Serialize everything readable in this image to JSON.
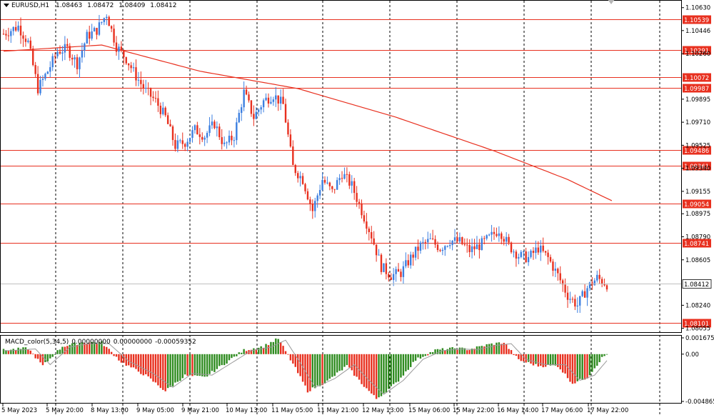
{
  "header": {
    "symbol": "EURUSD,H1",
    "open": "1.08463",
    "high": "1.08472",
    "low": "1.08409",
    "close": "1.08412"
  },
  "macd": {
    "name": "MACD_color(5,34,5)",
    "v1": "0.00000000",
    "v2": "0.00000000",
    "v3": "-0.00059352",
    "scale_labels": [
      "0.0016755",
      "0.00",
      "-0.0048655"
    ]
  },
  "price_axis_labels": [
    "1.10630",
    "1.10446",
    "1.10260",
    "1.09895",
    "1.09710",
    "1.09525",
    "1.09340",
    "1.09155",
    "1.08975",
    "1.08790",
    "1.08605",
    "1.08240",
    "1.08055"
  ],
  "levels": [
    "1.10539",
    "1.10291",
    "1.10072",
    "1.09987",
    "1.09486",
    "1.09361",
    "1.09054",
    "1.08741",
    "1.08101"
  ],
  "current_price": "1.08412",
  "time_labels": [
    "5 May 2023",
    "5 May 20:00",
    "8 May 13:00",
    "9 May 05:00",
    "9 May 21:00",
    "10 May 13:00",
    "11 May 05:00",
    "11 May 21:00",
    "12 May 13:00",
    "15 May 06:00",
    "15 May 22:00",
    "16 May 14:00",
    "17 May 06:00",
    "17 May 22:00"
  ],
  "colors": {
    "bull": "#3c7fe0",
    "bear": "#e8301f",
    "level": "#e8301f",
    "ma": "#e8301f",
    "hist_up": "#2e8b1f",
    "hist_down": "#e8301f",
    "signal": "#999999"
  },
  "chart_data": {
    "type": "candlestick",
    "symbol": "EURUSD",
    "timeframe": "H1",
    "ylim": [
      1.0803,
      1.1068
    ],
    "series_close_anchors": [
      [
        0,
        1.1042
      ],
      [
        6,
        1.1048
      ],
      [
        10,
        1.1035
      ],
      [
        14,
        1.0998
      ],
      [
        18,
        1.1012
      ],
      [
        22,
        1.1028
      ],
      [
        26,
        1.103
      ],
      [
        30,
        1.1018
      ],
      [
        34,
        1.104
      ],
      [
        38,
        1.1045
      ],
      [
        42,
        1.1058
      ],
      [
        46,
        1.1032
      ],
      [
        50,
        1.1022
      ],
      [
        54,
        1.1008
      ],
      [
        58,
        1.0996
      ],
      [
        62,
        1.0988
      ],
      [
        66,
        1.0975
      ],
      [
        70,
        1.0952
      ],
      [
        74,
        1.0955
      ],
      [
        78,
        1.0965
      ],
      [
        82,
        1.096
      ],
      [
        86,
        1.097
      ],
      [
        90,
        1.0952
      ],
      [
        94,
        1.096
      ],
      [
        98,
        1.0995
      ],
      [
        102,
        1.0975
      ],
      [
        106,
        1.0988
      ],
      [
        110,
        1.0993
      ],
      [
        114,
        1.0985
      ],
      [
        118,
        1.0935
      ],
      [
        122,
        1.0925
      ],
      [
        126,
        1.09
      ],
      [
        130,
        1.0925
      ],
      [
        134,
        1.0915
      ],
      [
        138,
        1.093
      ],
      [
        142,
        1.092
      ],
      [
        146,
        1.09
      ],
      [
        150,
        1.088
      ],
      [
        154,
        1.0855
      ],
      [
        158,
        1.0848
      ],
      [
        162,
        1.085
      ],
      [
        166,
        1.0862
      ],
      [
        170,
        1.0872
      ],
      [
        174,
        1.0876
      ],
      [
        178,
        1.087
      ],
      [
        182,
        1.0876
      ],
      [
        186,
        1.0875
      ],
      [
        190,
        1.0868
      ],
      [
        194,
        1.0872
      ],
      [
        198,
        1.0878
      ],
      [
        202,
        1.0885
      ],
      [
        206,
        1.0872
      ],
      [
        210,
        1.0864
      ],
      [
        214,
        1.0862
      ],
      [
        218,
        1.087
      ],
      [
        222,
        1.0862
      ],
      [
        226,
        1.0848
      ],
      [
        230,
        1.0832
      ],
      [
        234,
        1.0824
      ],
      [
        238,
        1.0838
      ],
      [
        242,
        1.0846
      ],
      [
        246,
        1.0841
      ]
    ],
    "moving_average": [
      [
        0,
        1.1028
      ],
      [
        40,
        1.1033
      ],
      [
        80,
        1.1012
      ],
      [
        120,
        1.0998
      ],
      [
        160,
        1.0975
      ],
      [
        200,
        1.0948
      ],
      [
        230,
        1.0925
      ],
      [
        248,
        1.0908
      ]
    ],
    "macd_histogram_anchors": [
      [
        0,
        0.0004
      ],
      [
        10,
        0.0006
      ],
      [
        16,
        -0.0012
      ],
      [
        24,
        0.0008
      ],
      [
        32,
        0.0012
      ],
      [
        40,
        0.0012
      ],
      [
        48,
        -0.0008
      ],
      [
        58,
        -0.0022
      ],
      [
        66,
        -0.0038
      ],
      [
        74,
        -0.0022
      ],
      [
        82,
        -0.0024
      ],
      [
        90,
        -0.001
      ],
      [
        98,
        0.0004
      ],
      [
        106,
        0.0008
      ],
      [
        112,
        0.0016
      ],
      [
        118,
        -0.001
      ],
      [
        124,
        -0.0038
      ],
      [
        132,
        -0.0028
      ],
      [
        140,
        -0.0012
      ],
      [
        146,
        -0.003
      ],
      [
        152,
        -0.0046
      ],
      [
        160,
        -0.003
      ],
      [
        168,
        -0.0006
      ],
      [
        176,
        0.0004
      ],
      [
        184,
        0.0006
      ],
      [
        190,
        0.0005
      ],
      [
        198,
        0.001
      ],
      [
        204,
        0.0012
      ],
      [
        210,
        -0.0006
      ],
      [
        218,
        -0.0012
      ],
      [
        226,
        -0.0012
      ],
      [
        232,
        -0.003
      ],
      [
        238,
        -0.0024
      ],
      [
        244,
        -0.0004
      ],
      [
        248,
        0.0004
      ]
    ],
    "macd_ylim": [
      -0.0048655,
      0.0016755
    ]
  }
}
